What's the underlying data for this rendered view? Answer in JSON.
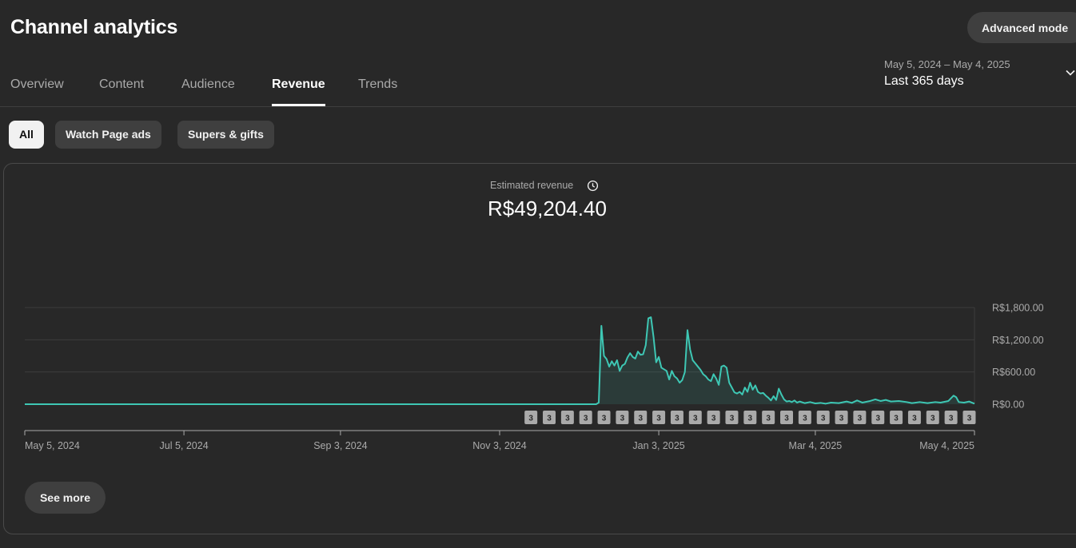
{
  "header": {
    "title": "Channel analytics",
    "advanced_mode_label": "Advanced mode"
  },
  "tabs": [
    {
      "label": "Overview",
      "active": false
    },
    {
      "label": "Content",
      "active": false
    },
    {
      "label": "Audience",
      "active": false
    },
    {
      "label": "Revenue",
      "active": true
    },
    {
      "label": "Trends",
      "active": false
    }
  ],
  "date_range": {
    "dates": "May 5, 2024 – May 4, 2025",
    "period": "Last 365 days",
    "icon": "chevron-down-icon"
  },
  "chips": [
    {
      "label": "All",
      "active": true
    },
    {
      "label": "Watch Page ads",
      "active": false
    },
    {
      "label": "Supers & gifts",
      "active": false
    }
  ],
  "metric": {
    "label": "Estimated revenue",
    "icon": "clock-icon",
    "value": "R$49,204.40"
  },
  "see_more_label": "See more",
  "colors": {
    "background": "#282828",
    "line": "#3ec7b4",
    "chip_active": "#f1f1f1",
    "marker": "#aaaaaa"
  },
  "chart_data": {
    "type": "area",
    "title": "Estimated revenue",
    "x_start": "2024-05-05",
    "x_end": "2025-05-04",
    "x_tick_labels": [
      "May 5, 2024",
      "Jul 5, 2024",
      "Sep 3, 2024",
      "Nov 3, 2024",
      "Jan 3, 2025",
      "Mar 4, 2025",
      "May 4, 2025"
    ],
    "x_tick_dates": [
      "2024-05-05",
      "2024-07-05",
      "2024-09-03",
      "2024-11-03",
      "2025-01-03",
      "2025-03-04",
      "2025-05-04"
    ],
    "y_tick_labels": [
      "R$0.00",
      "R$600.00",
      "R$1,200.00",
      "R$1,800.00"
    ],
    "y_tick_values": [
      0,
      600,
      1200,
      1800
    ],
    "ylim": [
      0,
      1800
    ],
    "grid": true,
    "series": [
      {
        "values_note": "daily estimated revenue, zero before 2024-12-11",
        "points": [
          [
            "2024-05-05",
            0
          ],
          [
            "2024-12-10",
            0
          ],
          [
            "2024-12-11",
            30
          ],
          [
            "2024-12-12",
            1460
          ],
          [
            "2024-12-13",
            900
          ],
          [
            "2024-12-14",
            840
          ],
          [
            "2024-12-15",
            700
          ],
          [
            "2024-12-16",
            800
          ],
          [
            "2024-12-17",
            720
          ],
          [
            "2024-12-18",
            820
          ],
          [
            "2024-12-19",
            620
          ],
          [
            "2024-12-20",
            720
          ],
          [
            "2024-12-21",
            750
          ],
          [
            "2024-12-22",
            870
          ],
          [
            "2024-12-23",
            950
          ],
          [
            "2024-12-24",
            880
          ],
          [
            "2024-12-25",
            850
          ],
          [
            "2024-12-26",
            980
          ],
          [
            "2024-12-27",
            920
          ],
          [
            "2024-12-28",
            930
          ],
          [
            "2024-12-29",
            1100
          ],
          [
            "2024-12-30",
            1600
          ],
          [
            "2024-12-31",
            1620
          ],
          [
            "2025-01-01",
            1250
          ],
          [
            "2025-01-02",
            780
          ],
          [
            "2025-01-03",
            880
          ],
          [
            "2025-01-04",
            680
          ],
          [
            "2025-01-05",
            650
          ],
          [
            "2025-01-06",
            620
          ],
          [
            "2025-01-07",
            460
          ],
          [
            "2025-01-08",
            620
          ],
          [
            "2025-01-09",
            520
          ],
          [
            "2025-01-10",
            480
          ],
          [
            "2025-01-11",
            400
          ],
          [
            "2025-01-12",
            450
          ],
          [
            "2025-01-13",
            600
          ],
          [
            "2025-01-14",
            1380
          ],
          [
            "2025-01-15",
            1020
          ],
          [
            "2025-01-16",
            820
          ],
          [
            "2025-01-17",
            760
          ],
          [
            "2025-01-18",
            700
          ],
          [
            "2025-01-19",
            640
          ],
          [
            "2025-01-20",
            560
          ],
          [
            "2025-01-21",
            520
          ],
          [
            "2025-01-22",
            460
          ],
          [
            "2025-01-23",
            430
          ],
          [
            "2025-01-24",
            560
          ],
          [
            "2025-01-25",
            480
          ],
          [
            "2025-01-26",
            360
          ],
          [
            "2025-01-27",
            700
          ],
          [
            "2025-01-28",
            720
          ],
          [
            "2025-01-29",
            680
          ],
          [
            "2025-01-30",
            400
          ],
          [
            "2025-01-31",
            310
          ],
          [
            "2025-02-01",
            220
          ],
          [
            "2025-02-02",
            200
          ],
          [
            "2025-02-03",
            230
          ],
          [
            "2025-02-04",
            180
          ],
          [
            "2025-02-05",
            310
          ],
          [
            "2025-02-06",
            230
          ],
          [
            "2025-02-07",
            400
          ],
          [
            "2025-02-08",
            270
          ],
          [
            "2025-02-09",
            350
          ],
          [
            "2025-02-10",
            230
          ],
          [
            "2025-02-11",
            200
          ],
          [
            "2025-02-12",
            210
          ],
          [
            "2025-02-13",
            160
          ],
          [
            "2025-02-14",
            120
          ],
          [
            "2025-02-15",
            70
          ],
          [
            "2025-02-16",
            150
          ],
          [
            "2025-02-17",
            80
          ],
          [
            "2025-02-18",
            290
          ],
          [
            "2025-02-19",
            180
          ],
          [
            "2025-02-20",
            90
          ],
          [
            "2025-02-21",
            50
          ],
          [
            "2025-02-22",
            60
          ],
          [
            "2025-02-23",
            40
          ],
          [
            "2025-02-24",
            70
          ],
          [
            "2025-02-25",
            30
          ],
          [
            "2025-02-26",
            50
          ],
          [
            "2025-02-28",
            20
          ],
          [
            "2025-03-02",
            40
          ],
          [
            "2025-03-04",
            15
          ],
          [
            "2025-03-06",
            25
          ],
          [
            "2025-03-08",
            10
          ],
          [
            "2025-03-10",
            30
          ],
          [
            "2025-03-13",
            20
          ],
          [
            "2025-03-16",
            50
          ],
          [
            "2025-03-18",
            25
          ],
          [
            "2025-03-20",
            70
          ],
          [
            "2025-03-22",
            30
          ],
          [
            "2025-03-25",
            60
          ],
          [
            "2025-03-27",
            90
          ],
          [
            "2025-03-29",
            60
          ],
          [
            "2025-03-31",
            80
          ],
          [
            "2025-04-02",
            50
          ],
          [
            "2025-04-05",
            60
          ],
          [
            "2025-04-08",
            40
          ],
          [
            "2025-04-10",
            20
          ],
          [
            "2025-04-13",
            40
          ],
          [
            "2025-04-16",
            20
          ],
          [
            "2025-04-19",
            40
          ],
          [
            "2025-04-21",
            30
          ],
          [
            "2025-04-24",
            60
          ],
          [
            "2025-04-26",
            160
          ],
          [
            "2025-04-27",
            130
          ],
          [
            "2025-04-28",
            40
          ],
          [
            "2025-04-30",
            30
          ],
          [
            "2025-05-02",
            50
          ],
          [
            "2025-05-04",
            10
          ]
        ]
      }
    ],
    "markers": {
      "label": "3",
      "dates": [
        "2024-11-15",
        "2024-11-22",
        "2024-11-29",
        "2024-12-06",
        "2024-12-13",
        "2024-12-20",
        "2024-12-27",
        "2025-01-03",
        "2025-01-10",
        "2025-01-17",
        "2025-01-24",
        "2025-01-31",
        "2025-02-07",
        "2025-02-14",
        "2025-02-21",
        "2025-02-28",
        "2025-03-07",
        "2025-03-14",
        "2025-03-21",
        "2025-03-28",
        "2025-04-04",
        "2025-04-11",
        "2025-04-18",
        "2025-04-25",
        "2025-05-02"
      ]
    }
  }
}
